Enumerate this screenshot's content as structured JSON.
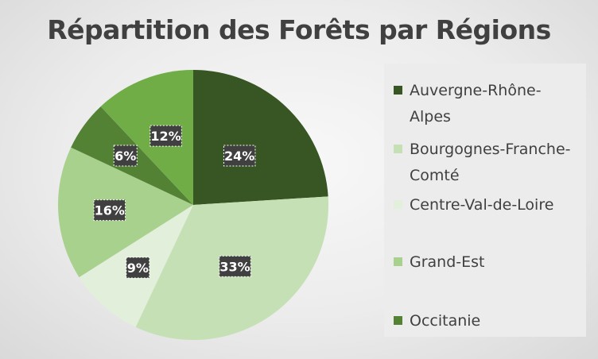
{
  "chart_data": {
    "type": "pie",
    "title": "Répartition des Forêts par Régions",
    "slices": [
      {
        "label": "Auvergne-Rhône-Alpes",
        "value": 24,
        "display": "24%",
        "color": "#375623"
      },
      {
        "label": "Bourgognes-Franche-Comté",
        "value": 33,
        "display": "33%",
        "color": "#c5e0b4"
      },
      {
        "label": "Centre-Val-de-Loire",
        "value": 9,
        "display": "9%",
        "color": "#e2efda"
      },
      {
        "label": "Grand-Est",
        "value": 16,
        "display": "16%",
        "color": "#a9d18e"
      },
      {
        "label": "Occitanie",
        "value": 6,
        "display": "6%",
        "color": "#548235"
      },
      {
        "label": "",
        "value": 12,
        "display": "12%",
        "color": "#70ad47"
      }
    ],
    "legend_position": "right",
    "legend": [
      {
        "label": "Auvergne-Rhône-Alpes",
        "color": "#375623"
      },
      {
        "label": "Bourgognes-Franche-Comté",
        "color": "#c5e0b4"
      },
      {
        "label": "Centre-Val-de-Loire",
        "color": "#e2efda"
      },
      {
        "label": "Grand-Est",
        "color": "#a9d18e"
      },
      {
        "label": "Occitanie",
        "color": "#548235"
      }
    ]
  }
}
